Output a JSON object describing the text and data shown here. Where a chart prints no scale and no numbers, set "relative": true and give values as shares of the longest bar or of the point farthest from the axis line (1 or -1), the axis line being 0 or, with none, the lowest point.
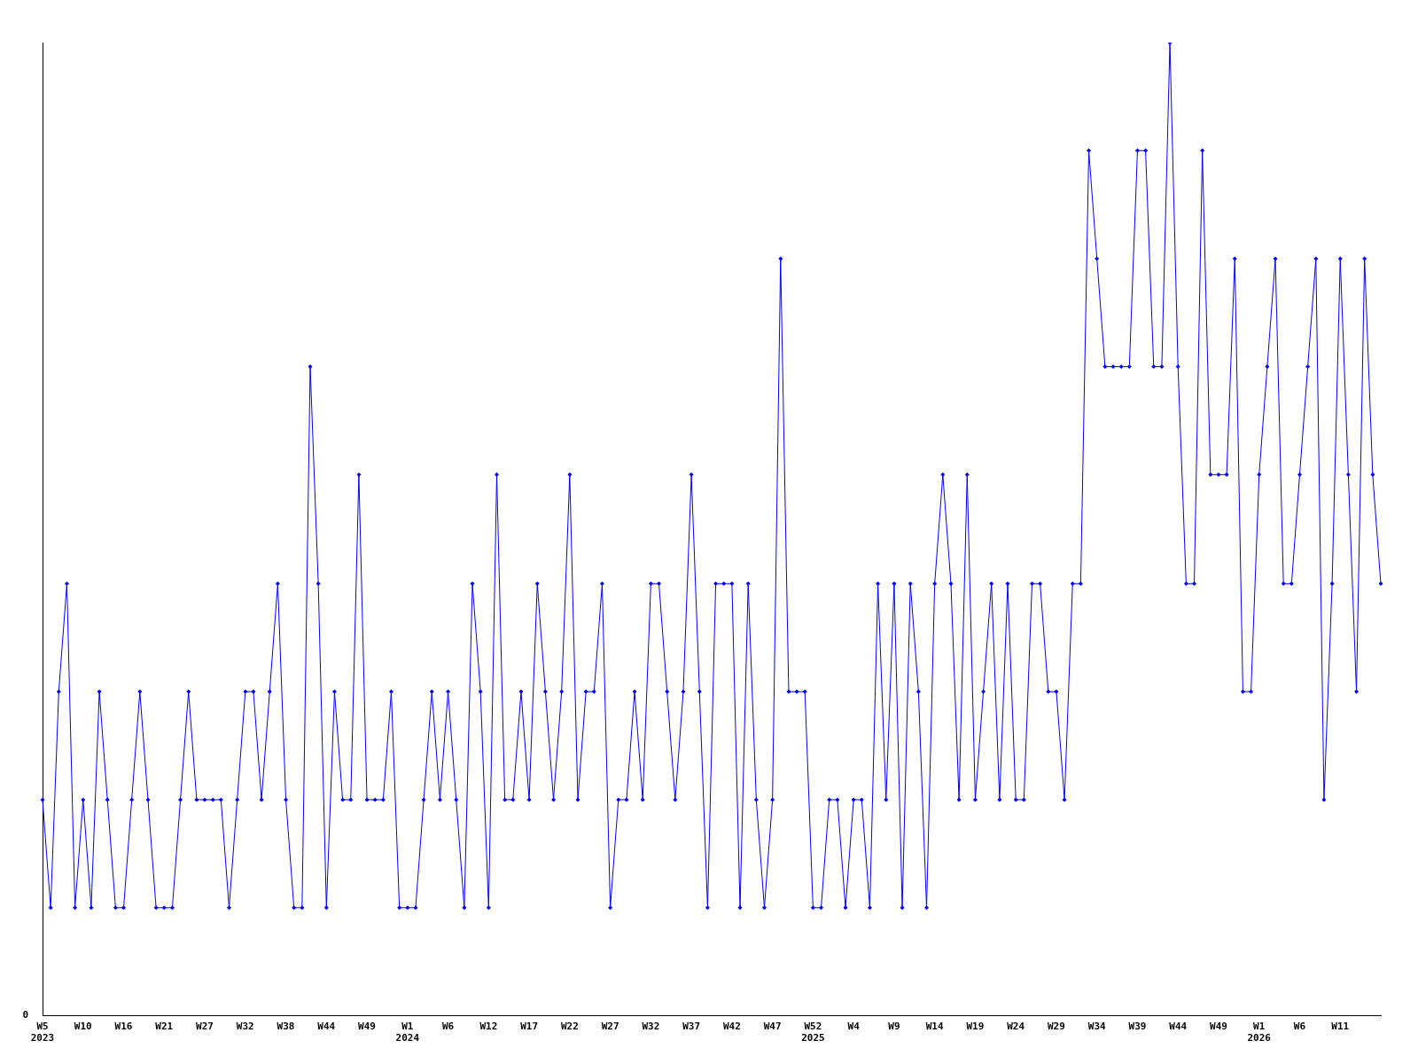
{
  "chart_data": {
    "type": "line",
    "relative": true,
    "annotations": [
      "0"
    ],
    "grid": false,
    "legend": false,
    "marker": "diamond",
    "line_style": "solid",
    "categories": [
      "W5\n2023",
      null,
      null,
      null,
      null,
      "W10",
      null,
      null,
      null,
      null,
      "W16",
      null,
      null,
      null,
      null,
      "W21",
      null,
      null,
      null,
      null,
      "W27",
      null,
      null,
      null,
      null,
      "W32",
      null,
      null,
      null,
      null,
      "W38",
      null,
      null,
      null,
      null,
      "W44",
      null,
      null,
      null,
      null,
      "W49",
      null,
      null,
      null,
      null,
      "W1\n2024",
      null,
      null,
      null,
      null,
      "W6",
      null,
      null,
      null,
      null,
      "W12",
      null,
      null,
      null,
      null,
      "W17",
      null,
      null,
      null,
      null,
      "W22",
      null,
      null,
      null,
      null,
      "W27",
      null,
      null,
      null,
      null,
      "W32",
      null,
      null,
      null,
      null,
      "W37",
      null,
      null,
      null,
      null,
      "W42",
      null,
      null,
      null,
      null,
      "W47",
      null,
      null,
      null,
      null,
      "W52\n2025",
      null,
      null,
      null,
      null,
      "W4",
      null,
      null,
      null,
      null,
      "W9",
      null,
      null,
      null,
      null,
      "W14",
      null,
      null,
      null,
      null,
      "W19",
      null,
      null,
      null,
      null,
      "W24",
      null,
      null,
      null,
      null,
      "W29",
      null,
      null,
      null,
      null,
      "W34",
      null,
      null,
      null,
      null,
      "W39",
      null,
      null,
      null,
      null,
      "W44",
      null,
      null,
      null,
      null,
      "W49",
      null,
      null,
      null,
      null,
      "W1\n2026",
      null,
      null,
      null,
      null,
      "W6",
      null,
      null,
      null,
      null,
      "W11",
      null,
      null,
      null,
      null,
      null
    ],
    "series": [
      {
        "color": "#0000ff",
        "values": [
          0.222,
          0.111,
          0.333,
          0.444,
          0.111,
          0.222,
          0.111,
          0.333,
          0.222,
          0.111,
          0.111,
          0.222,
          0.333,
          0.222,
          0.111,
          0.111,
          0.111,
          0.222,
          0.333,
          0.222,
          0.222,
          0.222,
          0.222,
          0.111,
          0.222,
          0.333,
          0.333,
          0.222,
          0.333,
          0.444,
          0.222,
          0.111,
          0.111,
          0.667,
          0.444,
          0.111,
          0.333,
          0.222,
          0.222,
          0.556,
          0.222,
          0.222,
          0.222,
          0.333,
          0.111,
          0.111,
          0.111,
          0.222,
          0.333,
          0.222,
          0.333,
          0.222,
          0.111,
          0.444,
          0.333,
          0.111,
          0.556,
          0.222,
          0.222,
          0.333,
          0.222,
          0.444,
          0.333,
          0.222,
          0.333,
          0.556,
          0.222,
          0.333,
          0.333,
          0.444,
          0.111,
          0.222,
          0.222,
          0.333,
          0.222,
          0.444,
          0.444,
          0.333,
          0.222,
          0.333,
          0.556,
          0.333,
          0.111,
          0.444,
          0.444,
          0.444,
          0.111,
          0.444,
          0.222,
          0.111,
          0.222,
          0.778,
          0.333,
          0.333,
          0.333,
          0.111,
          0.111,
          0.222,
          0.222,
          0.111,
          0.222,
          0.222,
          0.111,
          0.444,
          0.222,
          0.444,
          0.111,
          0.444,
          0.333,
          0.111,
          0.444,
          0.556,
          0.444,
          0.222,
          0.556,
          0.222,
          0.333,
          0.444,
          0.222,
          0.444,
          0.222,
          0.222,
          0.444,
          0.444,
          0.333,
          0.333,
          0.222,
          0.444,
          0.444,
          0.889,
          0.778,
          0.667,
          0.667,
          0.667,
          0.667,
          0.889,
          0.889,
          0.667,
          0.667,
          1,
          0.667,
          0.444,
          0.444,
          0.889,
          0.556,
          0.556,
          0.556,
          0.778,
          0.333,
          0.333,
          0.556,
          0.667,
          0.778,
          0.444,
          0.444,
          0.556,
          0.667,
          0.778,
          0.222,
          0.444,
          0.778,
          0.556,
          0.333,
          0.778,
          0.556,
          0.444
        ]
      }
    ]
  }
}
